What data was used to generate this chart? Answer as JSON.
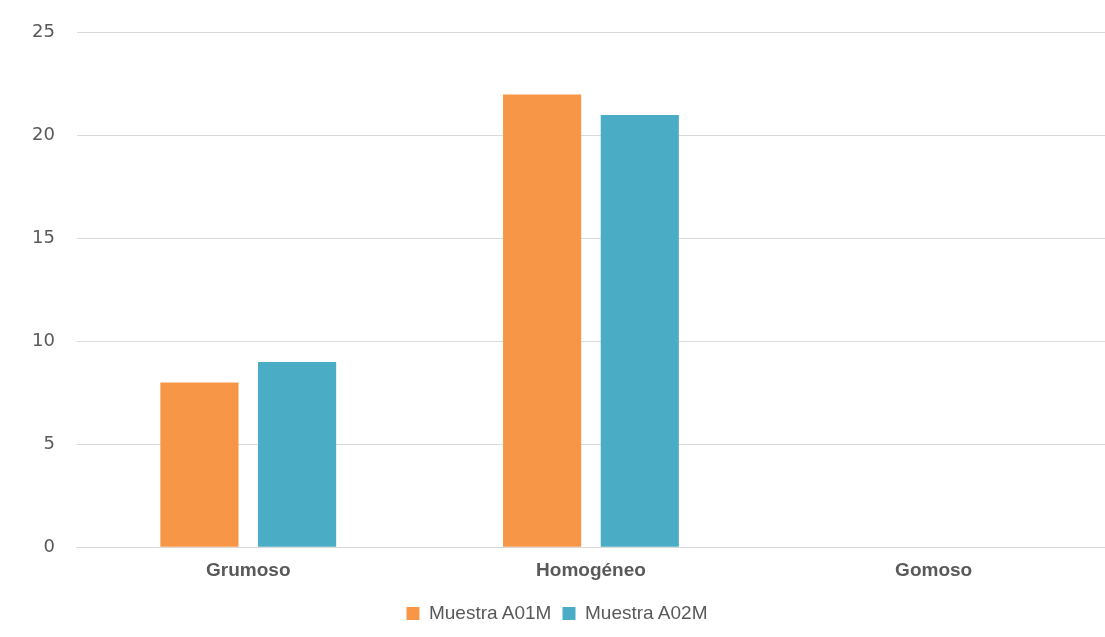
{
  "chart_data": {
    "type": "bar",
    "categories": [
      "Grumoso",
      "Homogéneo",
      "Gomoso"
    ],
    "series": [
      {
        "name": "Muestra A01M",
        "color": "#f79646",
        "values": [
          8,
          22,
          0
        ]
      },
      {
        "name": "Muestra A02M",
        "color": "#4bacc6",
        "values": [
          9,
          21,
          0
        ]
      }
    ],
    "ylim": [
      0,
      25
    ],
    "yticks": [
      0,
      5,
      10,
      15,
      20,
      25
    ],
    "grid": "y",
    "legend": "bottom"
  }
}
